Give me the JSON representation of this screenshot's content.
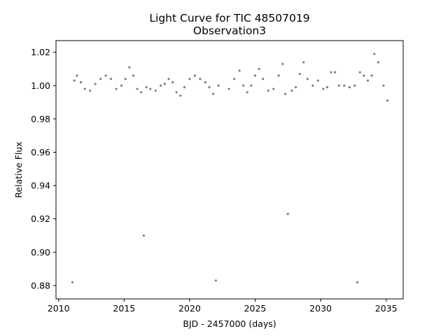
{
  "chart_data": {
    "type": "scatter",
    "title": "Light Curve for TIC 48507019",
    "subtitle": "Observation3",
    "xlabel": "BJD - 2457000 (days)",
    "ylabel": "Relative Flux",
    "xlim": [
      2009.8,
      2036.3
    ],
    "ylim": [
      0.872,
      1.027
    ],
    "x_ticks": [
      2010,
      2015,
      2020,
      2025,
      2030,
      2035
    ],
    "x_tick_labels": [
      "2010",
      "2015",
      "2020",
      "2025",
      "2030",
      "2035"
    ],
    "y_ticks": [
      0.88,
      0.9,
      0.92,
      0.94,
      0.96,
      0.98,
      1.0,
      1.02
    ],
    "y_tick_labels": [
      "0.88",
      "0.90",
      "0.92",
      "0.94",
      "0.96",
      "0.98",
      "1.00",
      "1.02"
    ],
    "grid": false,
    "marker_color": "#7f7f7f",
    "series": [
      {
        "x": [
          2011.05,
          2011.2,
          2011.4,
          2011.7,
          2012.0,
          2012.4,
          2012.8,
          2013.2,
          2013.6,
          2014.0,
          2014.4,
          2014.8,
          2015.1,
          2015.4,
          2015.7,
          2016.0,
          2016.3,
          2016.5,
          2016.7,
          2017.0,
          2017.4,
          2017.8,
          2018.1,
          2018.4,
          2018.7,
          2019.0,
          2019.3,
          2019.6,
          2020.0,
          2020.4,
          2020.8,
          2021.2,
          2021.5,
          2021.8,
          2022.0,
          2022.2,
          2023.0,
          2023.4,
          2023.8,
          2024.1,
          2024.4,
          2024.7,
          2025.0,
          2025.3,
          2025.6,
          2026.0,
          2026.4,
          2026.8,
          2027.1,
          2027.3,
          2027.5,
          2027.8,
          2028.1,
          2028.4,
          2028.7,
          2029.0,
          2029.4,
          2029.8,
          2030.2,
          2030.5,
          2030.8,
          2031.1,
          2031.4,
          2031.8,
          2032.2,
          2032.6,
          2032.8,
          2033.0,
          2033.3,
          2033.6,
          2033.9,
          2034.1,
          2034.4,
          2034.8,
          2035.1
        ],
        "y": [
          0.882,
          1.003,
          1.006,
          1.002,
          0.998,
          0.997,
          1.001,
          1.004,
          1.006,
          1.004,
          0.998,
          1.0,
          1.004,
          1.011,
          1.006,
          0.998,
          0.996,
          0.91,
          0.999,
          0.998,
          0.997,
          1.0,
          1.001,
          1.004,
          1.002,
          0.996,
          0.994,
          0.999,
          1.004,
          1.006,
          1.004,
          1.002,
          0.999,
          0.995,
          0.883,
          1.0,
          0.998,
          1.004,
          1.009,
          1.0,
          0.996,
          1.0,
          1.006,
          1.01,
          1.004,
          0.997,
          0.998,
          1.006,
          1.013,
          0.995,
          0.923,
          0.997,
          0.999,
          1.007,
          1.014,
          1.004,
          1.0,
          1.003,
          0.998,
          0.999,
          1.008,
          1.008,
          1.0,
          1.0,
          0.999,
          1.0,
          0.882,
          1.008,
          1.006,
          1.003,
          1.006,
          1.019,
          1.014,
          1.0,
          0.991
        ]
      }
    ]
  }
}
